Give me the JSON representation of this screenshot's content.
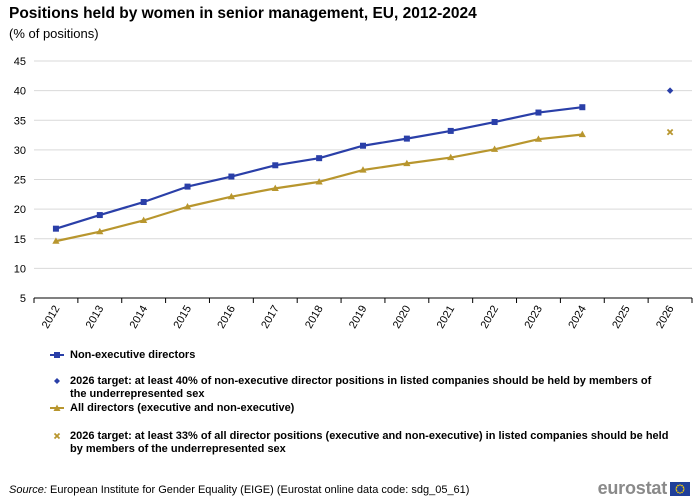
{
  "title": "Positions held by women in senior management, EU, 2012-2024",
  "subtitle": "(% of positions)",
  "source": {
    "label": "Source:",
    "text": "European Institute  for Gender Equality (EIGE) (Eurostat online data code: sdg_05_61)"
  },
  "logo": {
    "text": "eurostat"
  },
  "colors": {
    "blue": "#2a3fa8",
    "gold": "#b8962e",
    "grid": "#d9d9d9",
    "axis": "#000000"
  },
  "legend": [
    {
      "text": "Non-executive directors",
      "symbol": "line-square",
      "color": "#2a3fa8"
    },
    {
      "text": "2026 target: at least 40% of non-executive director positions in listed companies should be held by members of the underrepresented sex",
      "symbol": "diamond",
      "color": "#2a3fa8"
    },
    {
      "text": "All directors (executive and non-executive)",
      "symbol": "line-triangle",
      "color": "#b8962e"
    },
    {
      "text": "2026 target: at least 33% of all director positions (executive and non-executive) in listed companies should be held by members of the underrepresented sex",
      "symbol": "cross",
      "color": "#b8962e"
    }
  ],
  "chart_data": {
    "type": "line",
    "title": "Positions held by women in senior management, EU, 2012-2024",
    "ylim": [
      5,
      45
    ],
    "yticks": [
      5,
      10,
      15,
      20,
      25,
      30,
      35,
      40,
      45
    ],
    "categories": [
      "2012",
      "2013",
      "2014",
      "2015",
      "2016",
      "2017",
      "2018",
      "2019",
      "2020",
      "2021",
      "2022",
      "2023",
      "2024",
      "2025",
      "2026"
    ],
    "grid": true,
    "legend_position": "bottom",
    "series": [
      {
        "name": "Non-executive directors",
        "marker": "square",
        "color": "#2a3fa8",
        "values": [
          16.7,
          19.0,
          21.2,
          23.8,
          25.5,
          27.4,
          28.6,
          30.7,
          31.9,
          33.2,
          34.7,
          36.3,
          37.2,
          null,
          null
        ]
      },
      {
        "name": "All directors (executive and non-executive)",
        "marker": "triangle",
        "color": "#b8962e",
        "values": [
          14.6,
          16.2,
          18.1,
          20.4,
          22.1,
          23.5,
          24.6,
          26.6,
          27.7,
          28.7,
          30.1,
          31.8,
          32.6,
          null,
          null
        ]
      },
      {
        "name": "2026 target: at least 40% of non-executive director positions in listed companies should be held by members of the underrepresented sex",
        "marker": "diamond",
        "color": "#2a3fa8",
        "values": [
          null,
          null,
          null,
          null,
          null,
          null,
          null,
          null,
          null,
          null,
          null,
          null,
          null,
          null,
          40
        ]
      },
      {
        "name": "2026 target: at least 33% of all director positions (executive and non-executive) in listed companies should be held by members of the underrepresented sex",
        "marker": "cross",
        "color": "#b8962e",
        "values": [
          null,
          null,
          null,
          null,
          null,
          null,
          null,
          null,
          null,
          null,
          null,
          null,
          null,
          null,
          33
        ]
      }
    ]
  }
}
